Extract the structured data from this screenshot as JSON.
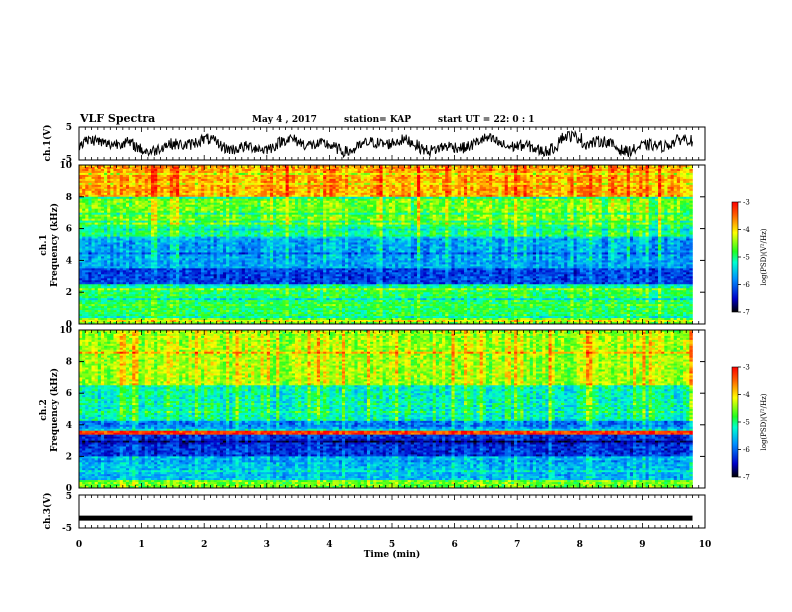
{
  "header": {
    "title": "VLF Spectra",
    "date": "May 4 , 2017",
    "station": "station= KAP",
    "start": "start UT = 22: 0 : 1"
  },
  "chart_data": [
    {
      "type": "line",
      "name": "ch1-waveform",
      "ylabel": "ch.1(V)",
      "ylim": [
        -5,
        5
      ],
      "yticks": [
        "5",
        "-5"
      ],
      "xlim": [
        0,
        10
      ],
      "x_end": 9.8,
      "description_values": "noisy signal mostly between -3 and 2 V"
    },
    {
      "type": "heatmap",
      "name": "ch1-spectrogram",
      "ylabel": "ch.1\nFrequency (kHz)",
      "ylim": [
        0,
        10
      ],
      "yticks": [
        "0",
        "2",
        "4",
        "6",
        "8",
        "10"
      ],
      "xlim": [
        0,
        10
      ],
      "x_end": 9.8,
      "bands_khz_log_psd": [
        [
          0,
          0.4,
          -4.6
        ],
        [
          0.4,
          2.2,
          -4.9
        ],
        [
          2.2,
          2.5,
          -5.2
        ],
        [
          2.5,
          3.5,
          -6.2
        ],
        [
          3.5,
          5.4,
          -5.7
        ],
        [
          5.4,
          6.5,
          -5.0
        ],
        [
          6.5,
          8.0,
          -4.6
        ],
        [
          8.0,
          10.0,
          -3.8
        ]
      ],
      "colorbar": {
        "label": "log(PSD)(V²/Hz)",
        "ticks": [
          "-3",
          "-4",
          "-5",
          "-6",
          "-7"
        ],
        "range": [
          -7,
          -3
        ]
      }
    },
    {
      "type": "heatmap",
      "name": "ch2-spectrogram",
      "ylabel": "ch.2\nFrequency (kHz)",
      "ylim": [
        0,
        10
      ],
      "yticks": [
        "0",
        "2",
        "4",
        "6",
        "8",
        "10"
      ],
      "xlim": [
        0,
        10
      ],
      "x_end": 9.8,
      "bands_khz_log_psd": [
        [
          0,
          0.5,
          -4.6
        ],
        [
          0.5,
          2.0,
          -5.6
        ],
        [
          2.0,
          3.4,
          -6.3
        ],
        [
          3.4,
          3.6,
          -3.3
        ],
        [
          3.6,
          4.2,
          -5.9
        ],
        [
          4.2,
          6.5,
          -5.2
        ],
        [
          6.5,
          10.0,
          -4.4
        ]
      ],
      "colorbar": {
        "label": "log(PSD)(V²/Hz)",
        "ticks": [
          "-3",
          "-4",
          "-5",
          "-6",
          "-7"
        ],
        "range": [
          -7,
          -3
        ]
      }
    },
    {
      "type": "line",
      "name": "ch3-waveform",
      "ylabel": "ch.3(V)",
      "ylim": [
        -5,
        5
      ],
      "yticks": [
        "5",
        "-5"
      ],
      "xlim": [
        0,
        10
      ],
      "x_end": 9.8,
      "description_values": "flat signal near -2 V"
    }
  ],
  "xaxis": {
    "label": "Time (min)",
    "ticks": [
      "0",
      "1",
      "2",
      "3",
      "4",
      "5",
      "6",
      "7",
      "8",
      "9",
      "10"
    ]
  }
}
